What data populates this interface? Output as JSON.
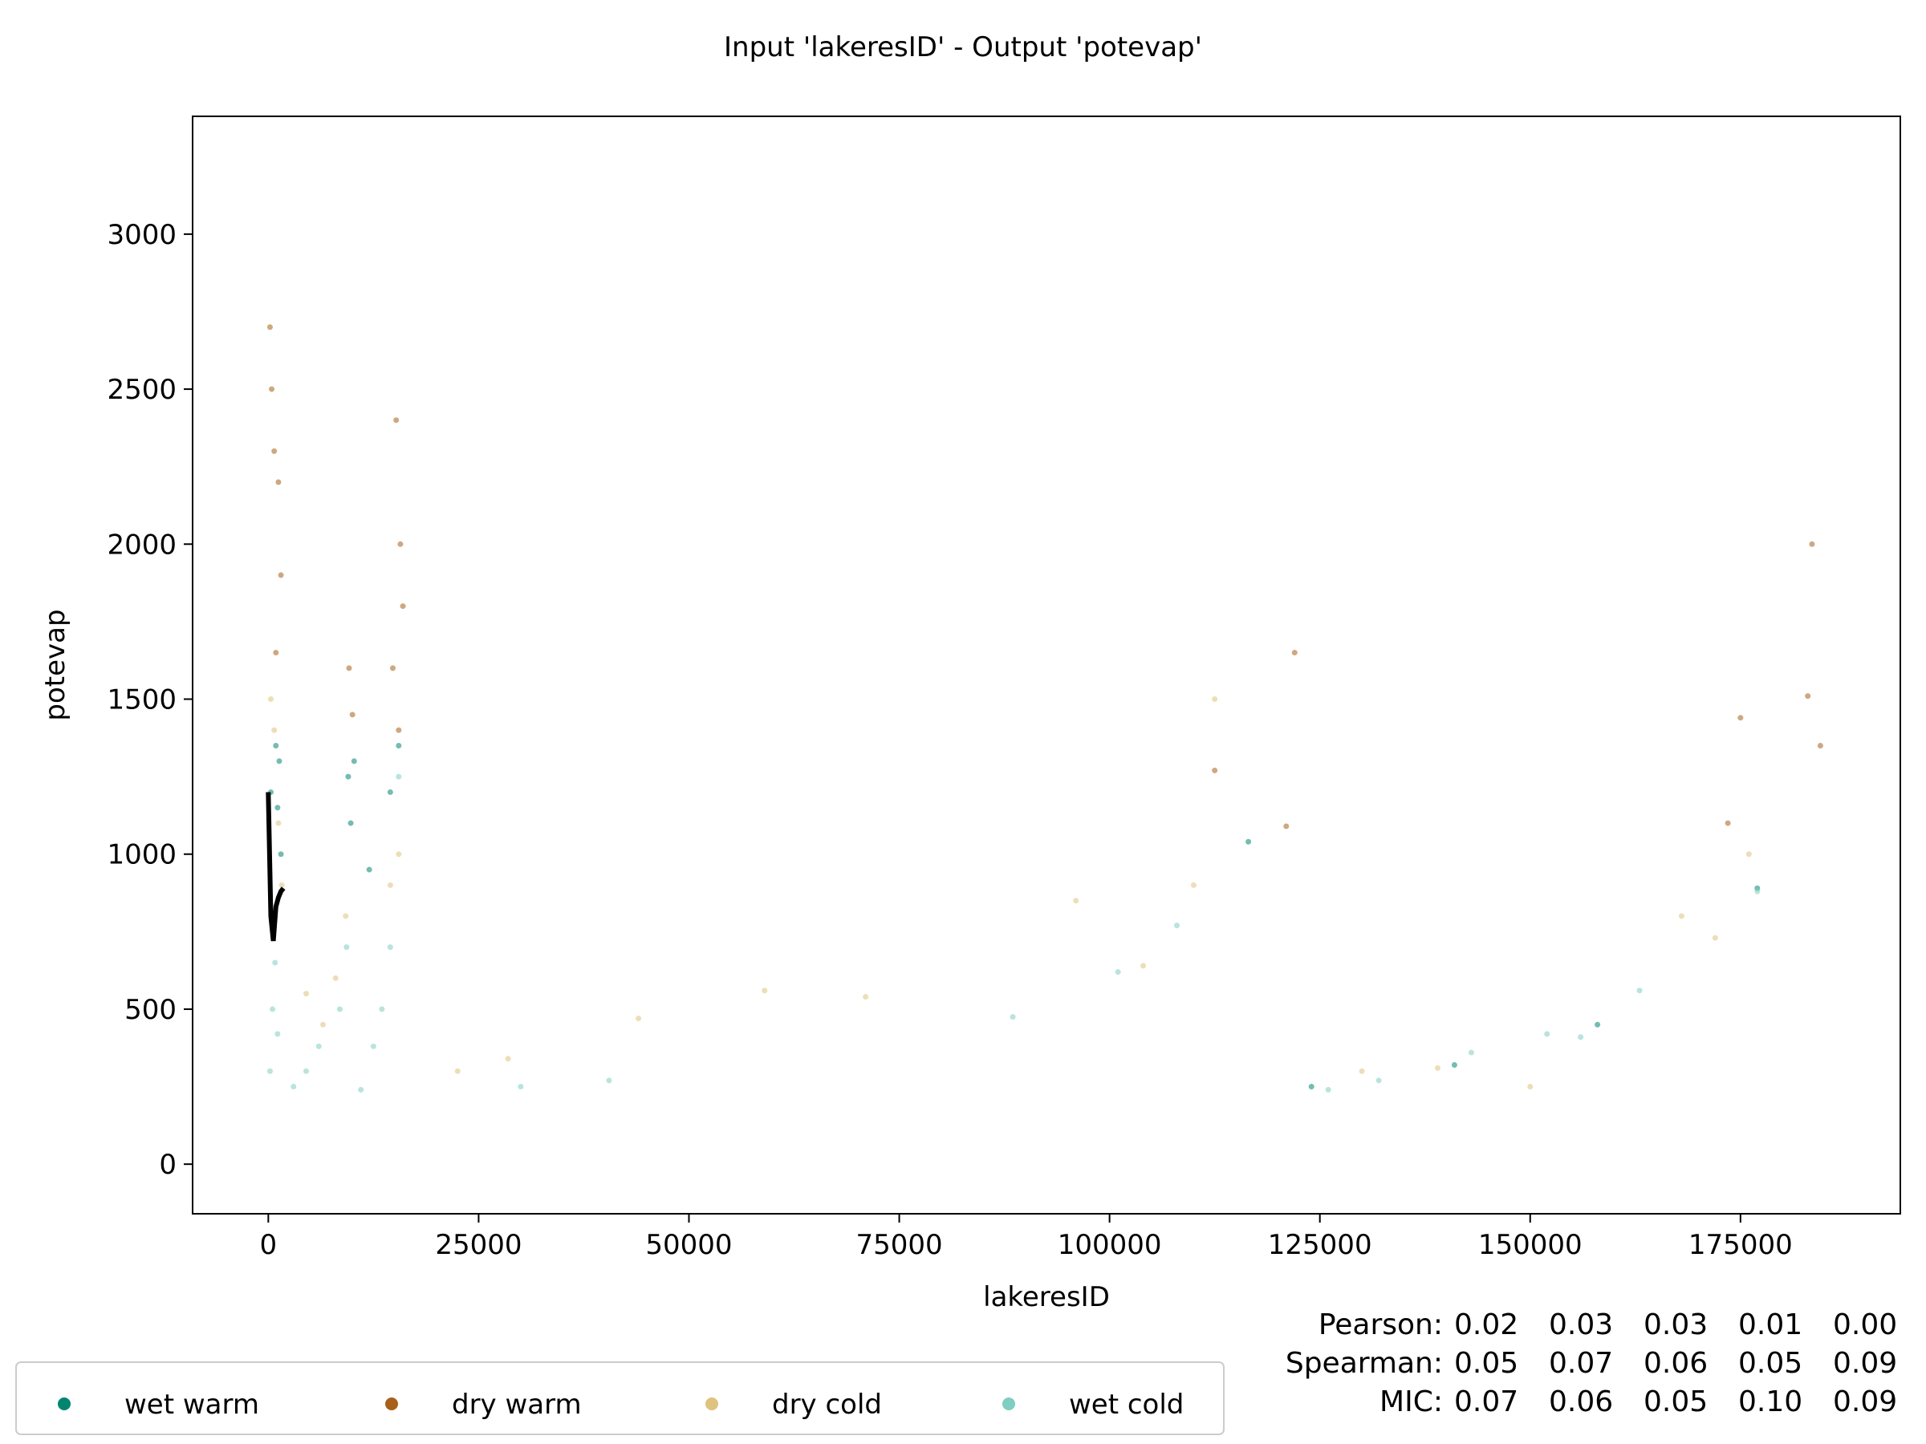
{
  "chart_data": {
    "type": "scatter",
    "title": "Input 'lakeresID' - Output 'potevap'",
    "xlabel": "lakeresID",
    "ylabel": "potevap",
    "xlim": [
      -9000,
      194000
    ],
    "ylim": [
      -160,
      3380
    ],
    "xticks": [
      0,
      25000,
      50000,
      75000,
      100000,
      125000,
      150000,
      175000
    ],
    "xtick_labels": [
      "0",
      "25000",
      "50000",
      "75000",
      "100000",
      "125000",
      "150000",
      "175000"
    ],
    "yticks": [
      0,
      500,
      1000,
      1500,
      2000,
      2500,
      3000
    ],
    "ytick_labels": [
      "0",
      "500",
      "1000",
      "1500",
      "2000",
      "2500",
      "3000"
    ],
    "grid": false,
    "legend_position": "bottom-left, below plot",
    "series": [
      {
        "name": "wet warm",
        "color": "#018571",
        "points": [
          [
            300,
            1200
          ],
          [
            900,
            1350
          ],
          [
            1100,
            1150
          ],
          [
            1300,
            1300
          ],
          [
            9500,
            1250
          ],
          [
            10200,
            1300
          ],
          [
            9800,
            1100
          ],
          [
            14500,
            1200
          ],
          [
            15500,
            1350
          ],
          [
            1500,
            1000
          ],
          [
            12000,
            950
          ],
          [
            116500,
            1040
          ],
          [
            124000,
            250
          ],
          [
            141000,
            320
          ],
          [
            158000,
            450
          ],
          [
            177000,
            890
          ]
        ]
      },
      {
        "name": "dry warm",
        "color": "#a6611a",
        "points": [
          [
            200,
            2700
          ],
          [
            400,
            2500
          ],
          [
            700,
            2300
          ],
          [
            1200,
            2200
          ],
          [
            1500,
            1900
          ],
          [
            900,
            1650
          ],
          [
            9600,
            1600
          ],
          [
            10000,
            1450
          ],
          [
            15200,
            2400
          ],
          [
            15700,
            2000
          ],
          [
            16000,
            1800
          ],
          [
            14800,
            1600
          ],
          [
            15500,
            1400
          ],
          [
            112500,
            1270
          ],
          [
            122000,
            1650
          ],
          [
            121000,
            1090
          ],
          [
            173500,
            1100
          ],
          [
            175000,
            1440
          ],
          [
            183000,
            1510
          ],
          [
            183500,
            2000
          ],
          [
            184500,
            1350
          ]
        ]
      },
      {
        "name": "dry cold",
        "color": "#dfc27d",
        "points": [
          [
            300,
            1500
          ],
          [
            700,
            1400
          ],
          [
            1200,
            1100
          ],
          [
            1600,
            900
          ],
          [
            4500,
            550
          ],
          [
            6500,
            450
          ],
          [
            8000,
            600
          ],
          [
            9200,
            800
          ],
          [
            14500,
            900
          ],
          [
            15500,
            1000
          ],
          [
            22500,
            300
          ],
          [
            28500,
            340
          ],
          [
            44000,
            470
          ],
          [
            59000,
            560
          ],
          [
            71000,
            540
          ],
          [
            96000,
            850
          ],
          [
            104000,
            640
          ],
          [
            110000,
            900
          ],
          [
            112500,
            1500
          ],
          [
            130000,
            300
          ],
          [
            139000,
            310
          ],
          [
            150000,
            250
          ],
          [
            168000,
            800
          ],
          [
            172000,
            730
          ],
          [
            176000,
            1000
          ]
        ]
      },
      {
        "name": "wet cold",
        "color": "#80cdc1",
        "points": [
          [
            200,
            300
          ],
          [
            500,
            500
          ],
          [
            800,
            650
          ],
          [
            1100,
            420
          ],
          [
            3000,
            250
          ],
          [
            4500,
            300
          ],
          [
            6000,
            380
          ],
          [
            8500,
            500
          ],
          [
            9300,
            700
          ],
          [
            11000,
            240
          ],
          [
            12500,
            380
          ],
          [
            13500,
            500
          ],
          [
            14500,
            700
          ],
          [
            15500,
            1250
          ],
          [
            30000,
            250
          ],
          [
            40500,
            270
          ],
          [
            88500,
            475
          ],
          [
            101000,
            620
          ],
          [
            108000,
            770
          ],
          [
            126000,
            240
          ],
          [
            132000,
            270
          ],
          [
            143000,
            360
          ],
          [
            152000,
            420
          ],
          [
            156000,
            410
          ],
          [
            163000,
            560
          ],
          [
            177000,
            880
          ]
        ]
      }
    ],
    "mean_line": {
      "color": "#000000",
      "points": [
        [
          0,
          1200
        ],
        [
          300,
          800
        ],
        [
          600,
          720
        ],
        [
          900,
          830
        ],
        [
          1200,
          860
        ],
        [
          1500,
          880
        ],
        [
          1800,
          890
        ]
      ]
    },
    "legend": [
      "wet warm",
      "dry warm",
      "dry cold",
      "wet cold"
    ],
    "stats": [
      {
        "label": "Pearson:",
        "overall": "0.02",
        "values": [
          "0.03",
          "0.03",
          "0.01",
          "0.00"
        ]
      },
      {
        "label": "Spearman:",
        "overall": "0.05",
        "values": [
          "0.07",
          "0.06",
          "0.05",
          "0.09"
        ]
      },
      {
        "label": "MIC:",
        "overall": "0.07",
        "values": [
          "0.06",
          "0.05",
          "0.10",
          "0.09"
        ]
      }
    ]
  }
}
